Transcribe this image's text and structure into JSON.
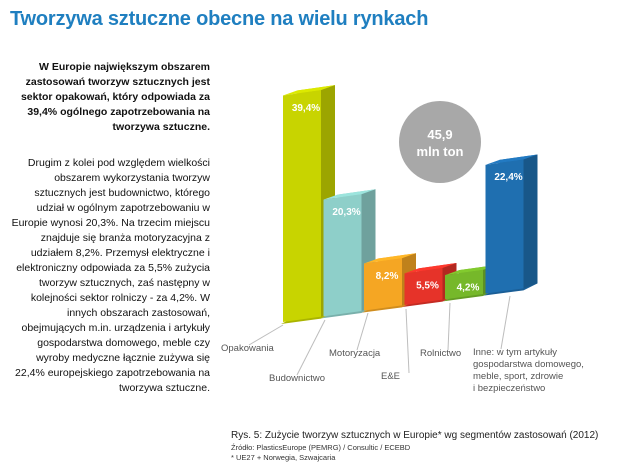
{
  "page": {
    "title": "Tworzywa sztuczne obecne na wielu rynkach",
    "lead_text": "W Europie największym obszarem zastosowań tworzyw sztucznych jest sektor opakowań, który odpowiada za 39,4% ogólnego zapotrzebowania na tworzywa sztuczne.",
    "body_text": "Drugim z kolei pod względem wielkości obszarem wykorzystania tworzyw sztucznych jest budownictwo, którego udział w ogólnym zapotrzebowaniu w Europie wynosi 20,3%. Na trzecim miejscu znajduje się branża motoryzacyjna z udziałem 8,2%. Przemysł elektryczne i elektroniczny odpowiada za 5,5% zużycia tworzyw sztucznych, zaś następny w kolejności sektor rolniczy - za 4,2%. W innych obszarach zastosowań, obejmujących m.in. urządzenia i artykuły gospodarstwa domowego, meble czy wyroby medyczne łącznie zużywa się 22,4% europejskiego zapotrzebowania na tworzywa sztuczne.",
    "caption": "Rys. 5: Zużycie tworzyw sztucznych w Europie* wg segmentów zastosowań (2012)",
    "source": "Źródło: PlasticsEurope (PEMRG) / Consultic / ECEBD",
    "footnote": "* UE27 + Norwegia, Szwajcaria"
  },
  "chart_data": {
    "type": "bar",
    "categories": [
      "Opakowania",
      "Budownictwo",
      "Motoryzacja",
      "E&E",
      "Rolnictwo",
      "Inne: w tym artykuły gospodarstwa domowego, meble, sport, zdrowie i bezpieczeństwo"
    ],
    "category_lines": [
      [
        "Opakowania"
      ],
      [
        "Budownictwo"
      ],
      [
        "Motoryzacja"
      ],
      [
        "E&E"
      ],
      [
        "Rolnictwo"
      ],
      [
        "Inne: w tym artykuły",
        "gospodarstwa domowego,",
        "meble, sport, zdrowie",
        "i bezpieczeństwo"
      ]
    ],
    "values": [
      39.4,
      20.3,
      8.2,
      5.5,
      4.2,
      22.4
    ],
    "value_labels": [
      "39,4%",
      "20,3%",
      "8,2%",
      "5,5%",
      "4,2%",
      "22,4%"
    ],
    "colors": [
      "#c8d400",
      "#8ecfc9",
      "#f5a623",
      "#e63329",
      "#76b82a",
      "#1f6fb0"
    ],
    "total_label_value": "45,9",
    "total_label_unit": "mln ton",
    "total_circle_color": "#a8a8a8",
    "ylim": [
      0,
      40
    ]
  }
}
